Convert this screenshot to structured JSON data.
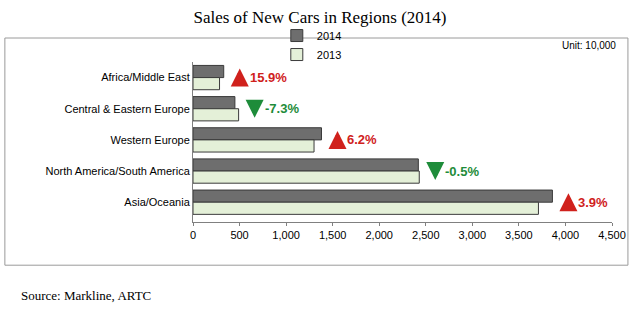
{
  "chart_data": {
    "type": "bar",
    "orientation": "horizontal",
    "title": "Sales of New Cars in Regions (2014)",
    "subtitle": "Unit: 10,000",
    "caption": "Source: Markline, ARTC",
    "categories": [
      "Africa/Middle East",
      "Central & Eastern Europe",
      "Western Europe",
      "North America/South America",
      "Asia/Oceania"
    ],
    "series": [
      {
        "name": "2014",
        "color": "#6e6e6e",
        "values": [
          330,
          450,
          1380,
          2420,
          3860
        ]
      },
      {
        "name": "2013",
        "color": "#e4f0d8",
        "values": [
          285,
          490,
          1300,
          2430,
          3710
        ]
      }
    ],
    "xlim": [
      0,
      4500
    ],
    "xticks": [
      0,
      500,
      {
        "value": 1000,
        "label": "1,000"
      },
      {
        "value": 1500,
        "label": "1,500"
      },
      {
        "value": 2000,
        "label": "2,000"
      },
      {
        "value": 2500,
        "label": "2,500"
      },
      {
        "value": 3000,
        "label": "3,000"
      },
      {
        "value": 3500,
        "label": "3,500"
      },
      {
        "value": 4000,
        "label": "4,000"
      },
      {
        "value": 4500,
        "label": "4,500"
      }
    ],
    "grid": false,
    "legend": "top",
    "data_labels": false,
    "annotations": [
      {
        "category": "Africa/Middle East",
        "text": "15.9%",
        "color": "#d0211c",
        "marker": "up"
      },
      {
        "category": "Central & Eastern Europe",
        "text": "-7.3%",
        "color": "#1e8c3a",
        "marker": "down"
      },
      {
        "category": "Western Europe",
        "text": "6.2%",
        "color": "#d0211c",
        "marker": "up"
      },
      {
        "category": "North America/South America",
        "text": "-0.5%",
        "color": "#1e8c3a",
        "marker": "down"
      },
      {
        "category": "Asia/Oceania",
        "text": "3.9%",
        "color": "#d0211c",
        "marker": "up"
      }
    ]
  }
}
